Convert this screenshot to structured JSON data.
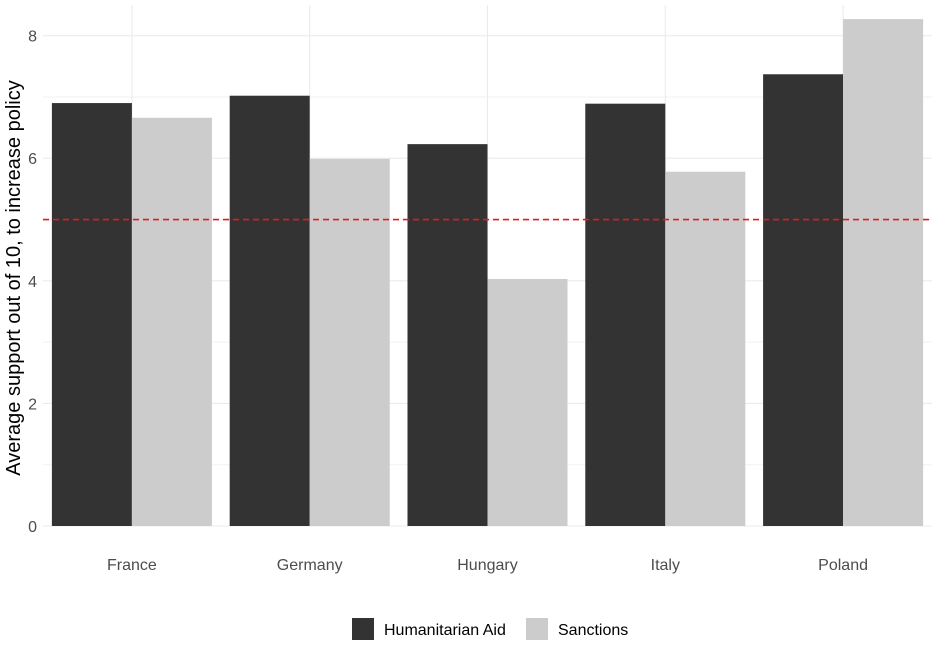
{
  "chart_data": {
    "type": "bar",
    "categories": [
      "France",
      "Germany",
      "Hungary",
      "Italy",
      "Poland"
    ],
    "series": [
      {
        "name": "Humanitarian Aid",
        "color": "#333333",
        "values": [
          6.9,
          7.02,
          6.23,
          6.89,
          7.37
        ]
      },
      {
        "name": "Sanctions",
        "color": "#cccccc",
        "values": [
          6.66,
          5.99,
          4.03,
          5.78,
          8.27
        ]
      }
    ],
    "xlabel": "",
    "ylabel": "Average support out of 10, to increase policy",
    "ylim": [
      0,
      8.5
    ],
    "yticks": [
      0,
      2,
      4,
      6,
      8
    ],
    "reference_line": {
      "value": 5,
      "color": "#e41a1c",
      "style": "dashed"
    },
    "grid": true,
    "legend_position": "bottom"
  }
}
